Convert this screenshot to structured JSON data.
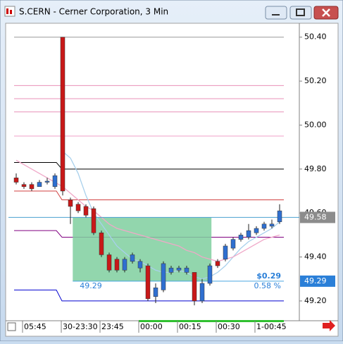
{
  "window_title": "S.CERN - Cerner Corporation, 3 Min",
  "chart_data": {
    "type": "candlestick",
    "ylim": [
      49.11,
      50.46
    ],
    "yticks": [
      {
        "value": 50.4,
        "label": "50.40"
      },
      {
        "value": 50.2,
        "label": "50.20"
      },
      {
        "value": 50.0,
        "label": "50.00"
      },
      {
        "value": 49.8,
        "label": "49.80"
      },
      {
        "value": 49.6,
        "label": "49.60"
      },
      {
        "value": 49.4,
        "label": "49.40"
      },
      {
        "value": 49.2,
        "label": "49.20"
      }
    ],
    "xticks": [
      {
        "value": 1,
        "label": "05:45"
      },
      {
        "value": 6,
        "label": "30-23:30"
      },
      {
        "value": 11,
        "label": "23:45"
      },
      {
        "value": 16,
        "label": "00:00"
      },
      {
        "value": 21,
        "label": "00:15"
      },
      {
        "value": 26,
        "label": "00:30"
      },
      {
        "value": 31,
        "label": "1-00:45"
      }
    ],
    "up_color": "#2f6fd0",
    "down_color": "#c81818",
    "open": [
      49.76,
      49.73,
      49.73,
      49.72,
      49.74,
      49.72,
      50.4,
      49.66,
      49.64,
      49.63,
      49.62,
      49.51,
      49.41,
      49.39,
      49.34,
      49.38,
      49.35,
      49.36,
      49.22,
      49.25,
      49.33,
      49.34,
      49.33,
      49.33,
      49.2,
      49.28,
      49.38,
      49.39,
      49.44,
      49.48,
      49.49,
      49.51,
      49.53,
      49.54,
      49.56
    ],
    "high": [
      49.78,
      49.74,
      49.74,
      49.75,
      49.76,
      49.78,
      50.4,
      49.67,
      49.65,
      49.64,
      49.63,
      49.52,
      49.42,
      49.4,
      49.4,
      49.42,
      49.39,
      49.37,
      49.28,
      49.38,
      49.36,
      49.36,
      49.36,
      49.33,
      49.3,
      49.37,
      49.39,
      49.46,
      49.49,
      49.51,
      49.55,
      49.54,
      49.56,
      49.57,
      49.64
    ],
    "low": [
      49.73,
      49.71,
      49.7,
      49.72,
      49.73,
      49.71,
      49.68,
      49.55,
      49.6,
      49.58,
      49.5,
      49.4,
      49.33,
      49.33,
      49.33,
      49.37,
      49.33,
      49.2,
      49.19,
      49.24,
      49.32,
      49.33,
      49.32,
      49.18,
      49.19,
      49.27,
      49.35,
      49.38,
      49.43,
      49.47,
      49.48,
      49.5,
      49.52,
      49.53,
      49.55
    ],
    "close": [
      49.74,
      49.72,
      49.71,
      49.74,
      49.745,
      49.77,
      49.7,
      49.63,
      49.61,
      49.59,
      49.51,
      49.41,
      49.34,
      49.34,
      49.39,
      49.41,
      49.38,
      49.21,
      49.26,
      49.37,
      49.35,
      49.35,
      49.35,
      49.2,
      49.28,
      49.36,
      49.36,
      49.45,
      49.48,
      49.5,
      49.52,
      49.53,
      49.55,
      49.55,
      49.61
    ],
    "averages": [
      {
        "color": "#a8d0ec",
        "values": [
          null,
          null,
          null,
          null,
          null,
          null,
          49.88,
          49.85,
          49.78,
          49.68,
          49.6,
          49.55,
          49.5,
          49.45,
          49.42,
          49.39,
          49.38,
          49.36,
          49.34,
          49.33,
          49.33,
          49.34,
          49.33,
          49.31,
          49.3,
          49.31,
          49.33,
          49.36,
          49.4,
          49.44,
          49.47,
          49.49,
          49.51,
          49.53,
          49.56
        ]
      },
      {
        "color": "#f0a8c8",
        "values": [
          49.84,
          49.82,
          49.8,
          49.78,
          49.76,
          49.74,
          49.72,
          49.69,
          49.66,
          49.63,
          49.61,
          49.58,
          49.55,
          49.53,
          49.52,
          49.51,
          49.5,
          49.49,
          49.48,
          49.47,
          49.46,
          49.45,
          49.43,
          49.42,
          49.4,
          49.39,
          49.38,
          49.39,
          49.4,
          49.42,
          49.44,
          49.46,
          49.48,
          49.49,
          49.5
        ]
      }
    ],
    "levels": [
      {
        "value": 50.4,
        "color": "#999999"
      },
      {
        "value": 50.18,
        "color": "#e890b8"
      },
      {
        "value": 50.12,
        "color": "#e890b8"
      },
      {
        "value": 50.06,
        "color": "#e890b8"
      },
      {
        "value": 49.95,
        "color": "#f0a0c8"
      },
      {
        "value": 49.8,
        "prior": 49.83,
        "color": "#000000"
      },
      {
        "value": 49.66,
        "prior": 49.7,
        "color": "#d04040"
      },
      {
        "value": 49.49,
        "prior": 49.52,
        "color": "#800080"
      },
      {
        "value": 49.2,
        "prior": 49.25,
        "color": "#0000d0"
      }
    ],
    "box": {
      "start": 7.3,
      "end": 25.2,
      "top": 49.58,
      "bottom": 49.29,
      "color": "#7fcf9f",
      "change": "$0.29",
      "change_pct": "0.58 %"
    },
    "markers": [
      {
        "value": 49.58,
        "color": "#8c8c8c"
      },
      {
        "value": 49.29,
        "color": "#2a7fd8"
      }
    ]
  }
}
